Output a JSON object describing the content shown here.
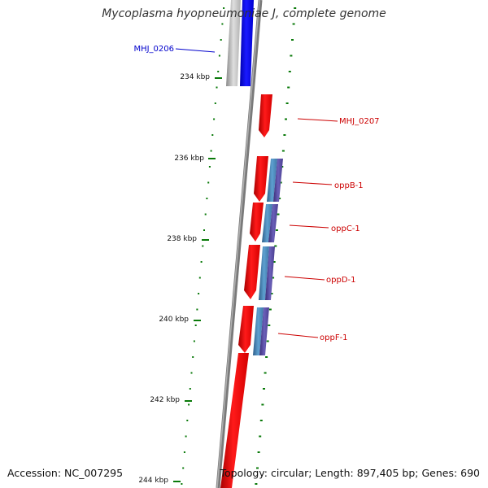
{
  "title": "Mycoplasma hyopneumoniae J, complete genome",
  "accession": "Accession: NC_007295",
  "stats": "Topology: circular; Length: 897,405 bp; Genes: 690",
  "colors": {
    "backbone": "#888888",
    "forward_cds": "#ee0000",
    "reverse_cds": "#0000ee",
    "gene_gray": "#b8b8b8",
    "operon_steel": "#4f8fc0",
    "operon_slate": "#5b4fa0",
    "tick": "#0a7a0a",
    "forward_label": "#cc0000",
    "reverse_label": "#0000cc"
  },
  "scale": {
    "ticks": [
      {
        "label": "234 kbp"
      },
      {
        "label": "236 kbp"
      },
      {
        "label": "238 kbp"
      },
      {
        "label": "240 kbp"
      },
      {
        "label": "242 kbp"
      },
      {
        "label": "244 kbp"
      }
    ]
  },
  "genes": [
    {
      "label": "MHJ_0206",
      "strand": "reverse"
    },
    {
      "label": "MHJ_0207",
      "strand": "forward"
    },
    {
      "label": "oppB-1",
      "strand": "forward"
    },
    {
      "label": "oppC-1",
      "strand": "forward"
    },
    {
      "label": "oppD-1",
      "strand": "forward"
    },
    {
      "label": "oppF-1",
      "strand": "forward"
    }
  ]
}
